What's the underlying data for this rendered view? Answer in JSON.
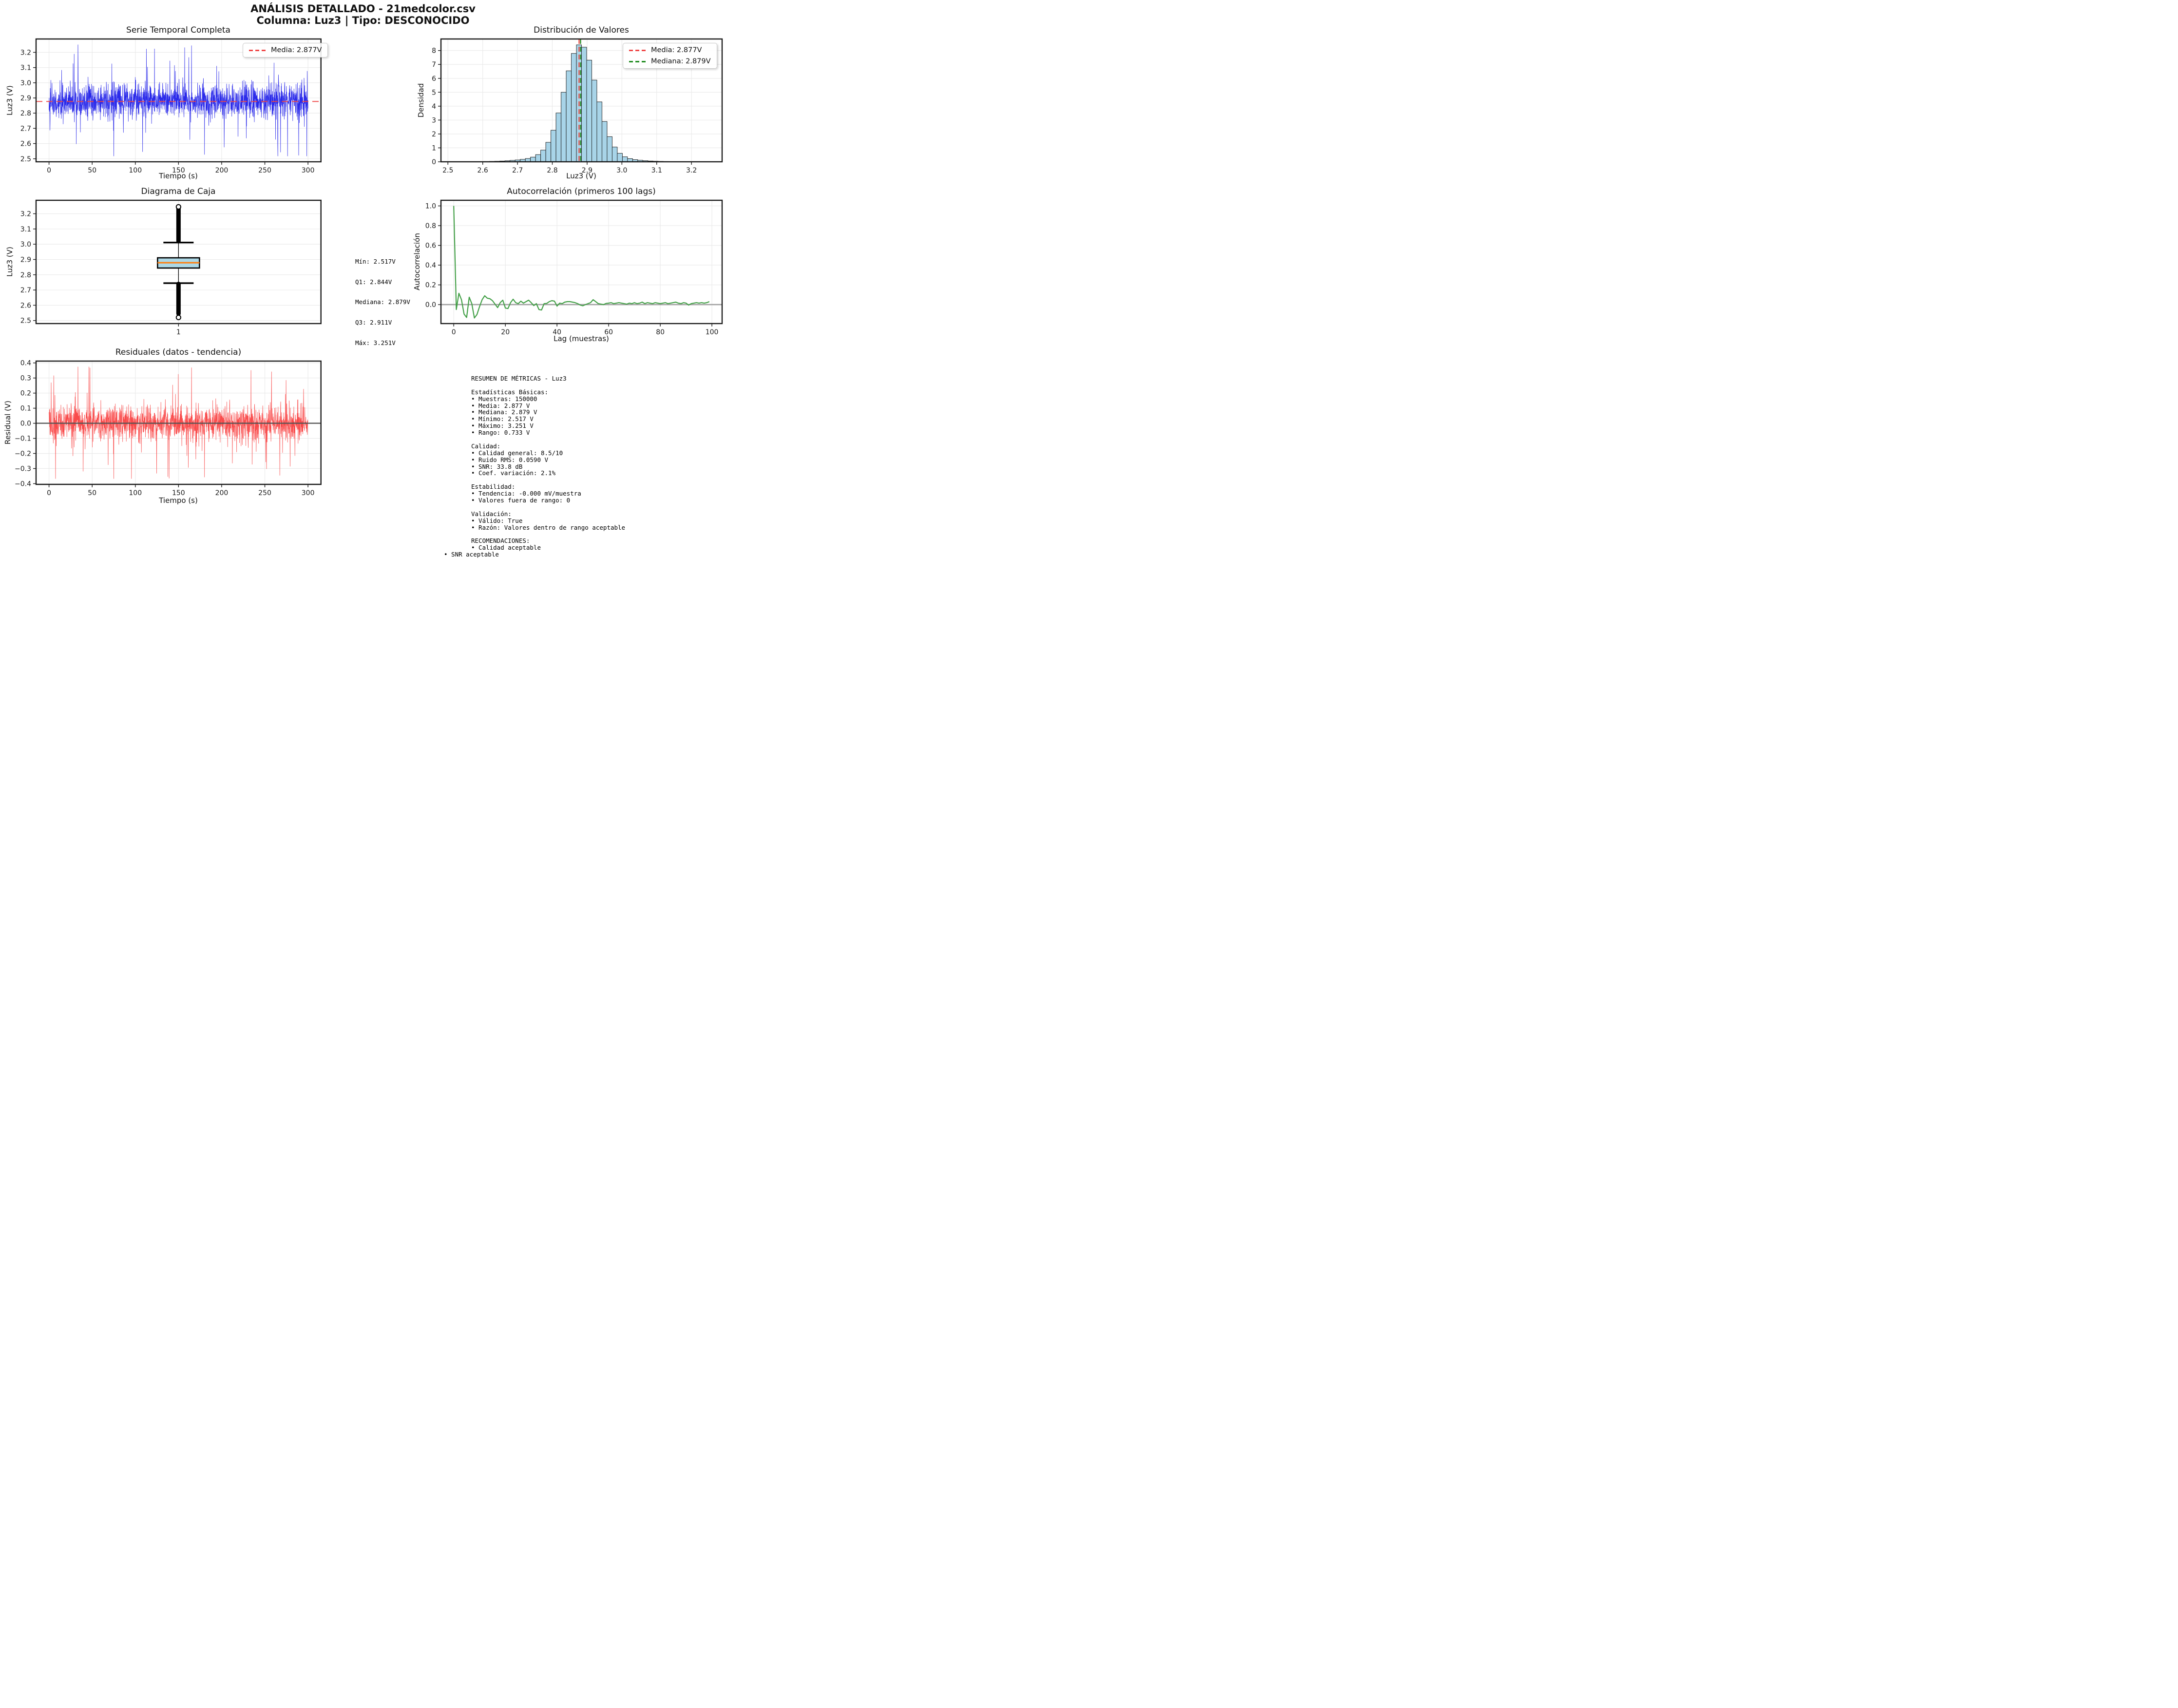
{
  "header": {
    "line1": "ANÁLISIS DETALLADO - 21medcolor.csv",
    "line2": "Columna: Luz3 | Tipo: DESCONOCIDO"
  },
  "colors": {
    "timeseries_line": "#2a2aea",
    "mean_dash": "#ef4444",
    "median_dash": "#1e8a1e",
    "hist_fill": "#a8d4e8",
    "hist_edge": "#1a1a1a",
    "autocorr_line": "#44a048",
    "residual_line": "#f94b4b",
    "box_fill": "#add8e6",
    "box_median": "#ff7f0e",
    "grid": "#e9e9e9",
    "spine": "#1a1a1a"
  },
  "stats_annotation": {
    "lines": [
      "Mín: 2.517V",
      "Q1: 2.844V",
      "Mediana: 2.879V",
      "Q3: 2.911V",
      "Máx: 3.251V"
    ]
  },
  "metrics": {
    "lines": [
      {
        "t": "RESUMEN DE MÉTRICAS - Luz3",
        "o": 0
      },
      {
        "t": "",
        "o": 0
      },
      {
        "t": "Estadísticas Básicas:",
        "o": 0
      },
      {
        "t": "• Muestras: 150000",
        "o": 0
      },
      {
        "t": "• Media: 2.877 V",
        "o": 0
      },
      {
        "t": "• Mediana: 2.879 V",
        "o": 0
      },
      {
        "t": "• Mínimo: 2.517 V",
        "o": 0
      },
      {
        "t": "• Máximo: 3.251 V",
        "o": 0
      },
      {
        "t": "• Rango: 0.733 V",
        "o": 0
      },
      {
        "t": "",
        "o": 0
      },
      {
        "t": "Calidad:",
        "o": 0
      },
      {
        "t": "• Calidad general: 8.5/10",
        "o": 0
      },
      {
        "t": "• Ruido RMS: 0.0590 V",
        "o": 0
      },
      {
        "t": "• SNR: 33.8 dB",
        "o": 0
      },
      {
        "t": "• Coef. variación: 2.1%",
        "o": 0
      },
      {
        "t": "",
        "o": 0
      },
      {
        "t": "Estabilidad:",
        "o": 0
      },
      {
        "t": "• Tendencia: -0.000 mV/muestra",
        "o": 0
      },
      {
        "t": "• Valores fuera de rango: 0",
        "o": 0
      },
      {
        "t": "",
        "o": 0
      },
      {
        "t": "Validación:",
        "o": 0
      },
      {
        "t": "• Válido: True",
        "o": 0
      },
      {
        "t": "• Razón: Valores dentro de rango aceptable",
        "o": 0
      },
      {
        "t": "",
        "o": 0
      },
      {
        "t": "RECOMENDACIONES:",
        "o": 0
      },
      {
        "t": "• Calidad aceptable",
        "o": 0
      },
      {
        "t": "• SNR aceptable",
        "o": 1
      }
    ]
  },
  "chart_data": [
    {
      "id": "timeseries",
      "type": "line",
      "title": "Serie Temporal Completa",
      "xlabel": "Tiempo (s)",
      "ylabel": "Luz3 (V)",
      "legend_label": "Media: 2.877V",
      "xlim": [
        -15,
        315
      ],
      "ylim": [
        2.48,
        3.288
      ],
      "xticks": {
        "v": [
          0,
          50,
          100,
          150,
          200,
          250,
          300
        ],
        "l": [
          "0",
          "50",
          "100",
          "150",
          "200",
          "250",
          "300"
        ]
      },
      "yticks": {
        "v": [
          2.5,
          2.6,
          2.7,
          2.8,
          2.9,
          3.0,
          3.1,
          3.2
        ],
        "l": [
          "2.5",
          "2.6",
          "2.7",
          "2.8",
          "2.9",
          "3.0",
          "3.1",
          "3.2"
        ]
      },
      "grid": true,
      "legend_position": "upper right",
      "signal": {
        "n_samples": 150000,
        "duration_s": 300,
        "mean": 2.877,
        "rms_noise": 0.059,
        "min": 2.517,
        "max": 3.251
      },
      "mean_line": 2.877
    },
    {
      "id": "histogram",
      "type": "bar",
      "title": "Distribución de Valores",
      "xlabel": "Luz3 (V)",
      "ylabel": "Densidad",
      "legend": {
        "media": "Media: 2.877V",
        "mediana": "Mediana: 2.879V"
      },
      "xlim": [
        2.48,
        3.288
      ],
      "ylim": [
        0,
        8.83
      ],
      "xticks": {
        "v": [
          2.5,
          2.6,
          2.7,
          2.8,
          2.9,
          3.0,
          3.1,
          3.2
        ],
        "l": [
          "2.5",
          "2.6",
          "2.7",
          "2.8",
          "2.9",
          "3.0",
          "3.1",
          "3.2"
        ]
      },
      "yticks": {
        "v": [
          0,
          1,
          2,
          3,
          4,
          5,
          6,
          7,
          8
        ],
        "l": [
          "0",
          "1",
          "2",
          "3",
          "4",
          "5",
          "6",
          "7",
          "8"
        ]
      },
      "grid": true,
      "legend_position": "upper right",
      "bin_start": 2.517,
      "bin_width": 0.01468,
      "densities": [
        0.001,
        0.002,
        0.004,
        0.006,
        0.009,
        0.013,
        0.02,
        0.03,
        0.04,
        0.056,
        0.076,
        0.102,
        0.134,
        0.176,
        0.237,
        0.338,
        0.517,
        0.842,
        1.4,
        2.27,
        3.51,
        5.0,
        6.54,
        7.79,
        8.41,
        8.24,
        7.31,
        5.88,
        4.31,
        2.9,
        1.81,
        1.06,
        0.61,
        0.36,
        0.23,
        0.155,
        0.11,
        0.08,
        0.058,
        0.042,
        0.03,
        0.021,
        0.014,
        0.009,
        0.006,
        0.004,
        0.0025,
        0.0015,
        0.001,
        0.0005
      ],
      "mean_line": 2.877,
      "median_line": 2.879
    },
    {
      "id": "boxplot",
      "type": "box",
      "title": "Diagrama de Caja",
      "ylabel": "Luz3 (V)",
      "xlim": [
        0.5,
        1.5
      ],
      "ylim": [
        2.48,
        3.288
      ],
      "xticks": {
        "v": [
          1
        ],
        "l": [
          "1"
        ]
      },
      "yticks": {
        "v": [
          2.5,
          2.6,
          2.7,
          2.8,
          2.9,
          3.0,
          3.1,
          3.2
        ],
        "l": [
          "2.5",
          "2.6",
          "2.7",
          "2.8",
          "2.9",
          "3.0",
          "3.1",
          "3.2"
        ]
      },
      "grid": true,
      "min": 2.517,
      "q1": 2.844,
      "median": 2.879,
      "q3": 2.911,
      "max": 3.251,
      "whisker_low": 2.745,
      "whisker_high": 3.011,
      "outliers_high_range": [
        3.02,
        3.245
      ],
      "outliers_low_range": [
        2.517,
        2.74
      ]
    },
    {
      "id": "autocorr",
      "type": "line",
      "title": "Autocorrelación (primeros 100 lags)",
      "xlabel": "Lag (muestras)",
      "ylabel": "Autocorrelación",
      "xlim": [
        -4.95,
        103.95
      ],
      "ylim": [
        -0.192,
        1.057
      ],
      "xticks": {
        "v": [
          0,
          20,
          40,
          60,
          80,
          100
        ],
        "l": [
          "0",
          "20",
          "40",
          "60",
          "80",
          "100"
        ]
      },
      "yticks": {
        "v": [
          0.0,
          0.2,
          0.4,
          0.6,
          0.8,
          1.0
        ],
        "l": [
          "0.0",
          "0.2",
          "0.4",
          "0.6",
          "0.8",
          "1.0"
        ]
      },
      "grid": true,
      "zero_line": 0.0,
      "lags": "0-99",
      "values": [
        1.0,
        -0.05,
        0.115,
        0.05,
        -0.095,
        -0.13,
        0.075,
        0.01,
        -0.135,
        -0.1,
        -0.02,
        0.05,
        0.09,
        0.065,
        0.06,
        0.04,
        0.005,
        -0.03,
        0.02,
        0.045,
        -0.035,
        -0.04,
        0.02,
        0.055,
        0.02,
        0.01,
        0.035,
        0.015,
        0.03,
        0.045,
        0.02,
        -0.01,
        0.01,
        -0.05,
        -0.055,
        0.01,
        0.012,
        0.03,
        0.04,
        0.035,
        -0.015,
        0.015,
        0.01,
        0.025,
        0.03,
        0.03,
        0.025,
        0.02,
        0.01,
        -0.005,
        -0.012,
        0.0,
        0.01,
        0.02,
        0.05,
        0.03,
        0.01,
        0.005,
        0.0,
        0.012,
        0.015,
        0.02,
        0.01,
        0.015,
        0.02,
        0.015,
        0.01,
        0.005,
        0.015,
        0.01,
        0.02,
        0.01,
        0.015,
        0.025,
        0.01,
        0.02,
        0.015,
        0.01,
        0.02,
        0.015,
        0.01,
        0.015,
        0.02,
        0.01,
        0.015,
        0.02,
        0.025,
        0.015,
        0.01,
        0.02,
        0.015,
        -0.005,
        0.01,
        0.015,
        0.02,
        0.015,
        0.02,
        0.015,
        0.02,
        0.03
      ]
    },
    {
      "id": "residuals",
      "type": "line",
      "title": "Residuales (datos - tendencia)",
      "xlabel": "Tiempo (s)",
      "ylabel": "Residual (V)",
      "xlim": [
        -15,
        315
      ],
      "ylim": [
        -0.405,
        0.412
      ],
      "xticks": {
        "v": [
          0,
          50,
          100,
          150,
          200,
          250,
          300
        ],
        "l": [
          "0",
          "50",
          "100",
          "150",
          "200",
          "250",
          "300"
        ]
      },
      "yticks": {
        "v": [
          -0.4,
          -0.3,
          -0.2,
          -0.1,
          0.0,
          0.1,
          0.2,
          0.3,
          0.4
        ],
        "l": [
          "−0.4",
          "−0.3",
          "−0.2",
          "−0.1",
          "0.0",
          "0.1",
          "0.2",
          "0.3",
          "0.4"
        ]
      },
      "grid": true,
      "zero_line": 0.0,
      "signal": {
        "mean": 0.0,
        "rms": 0.059,
        "min": -0.368,
        "max": 0.375,
        "duration_s": 300
      }
    }
  ]
}
